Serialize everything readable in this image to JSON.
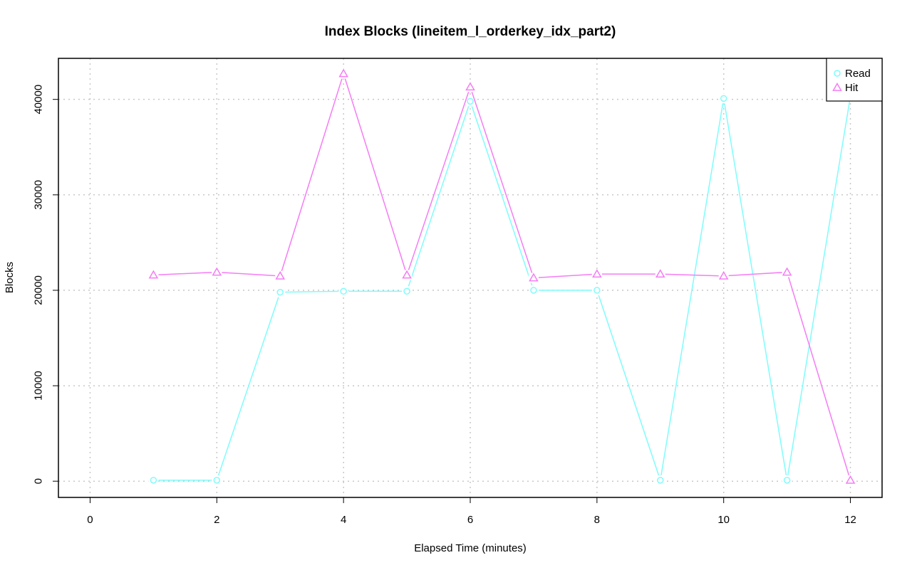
{
  "chart_data": {
    "type": "line",
    "title": "Index Blocks (lineitem_l_orderkey_idx_part2)",
    "xlabel": "Elapsed Time (minutes)",
    "ylabel": "Blocks",
    "xlim": [
      -0.5,
      12.5
    ],
    "ylim": [
      -1700,
      44300
    ],
    "x_ticks": [
      0,
      2,
      4,
      6,
      8,
      10,
      12
    ],
    "y_ticks": [
      0,
      10000,
      20000,
      30000,
      40000
    ],
    "grid": true,
    "legend_position": "top-right",
    "series": [
      {
        "name": "Read",
        "color": "#7ffcfc",
        "marker": "circle",
        "x": [
          1,
          2,
          3,
          4,
          5,
          6,
          7,
          8,
          9,
          10,
          11,
          12
        ],
        "values": [
          100,
          100,
          19800,
          19900,
          19900,
          39800,
          20000,
          20000,
          100,
          40100,
          100,
          40300
        ]
      },
      {
        "name": "Hit",
        "color": "#f57cf5",
        "marker": "triangle",
        "x": [
          1,
          2,
          3,
          4,
          5,
          6,
          7,
          8,
          9,
          10,
          11,
          12
        ],
        "values": [
          21600,
          21900,
          21500,
          42700,
          21600,
          41300,
          21300,
          21700,
          21700,
          21500,
          21900,
          100
        ]
      }
    ]
  }
}
